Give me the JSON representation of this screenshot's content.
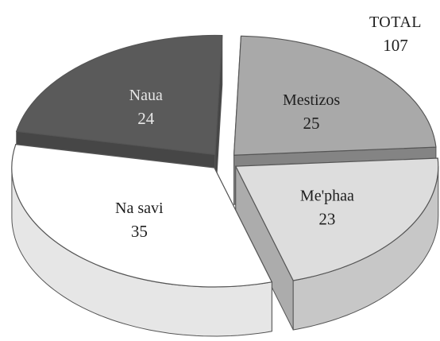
{
  "chart_data": {
    "type": "pie",
    "total_label": "TOTAL",
    "total_value": "107",
    "slices": [
      {
        "label": "Mestizos",
        "value": 25,
        "color": "#a9a9a9",
        "text_color": "#1e1e1e"
      },
      {
        "label": "Me'phaa",
        "value": 23,
        "color": "#dddddd",
        "text_color": "#1e1e1e"
      },
      {
        "label": "Na savi",
        "value": 35,
        "color": "#ffffff",
        "text_color": "#1e1e1e"
      },
      {
        "label": "Naua",
        "value": 24,
        "color": "#5a5a5a",
        "text_color": "#e6e6e6"
      }
    ],
    "style": "3d-exploded"
  }
}
